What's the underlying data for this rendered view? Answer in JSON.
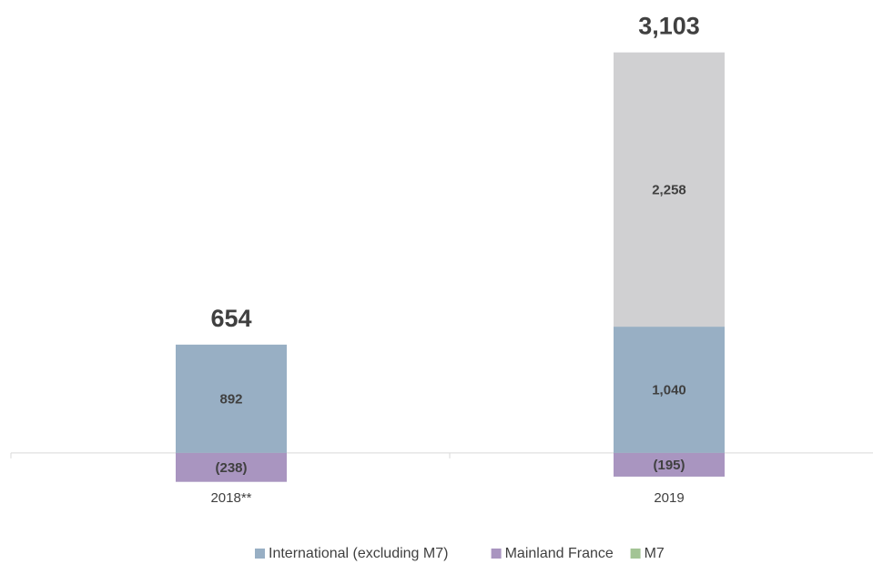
{
  "chart_data": {
    "type": "stacked_bar",
    "categories": [
      "2018**",
      "2019"
    ],
    "series": [
      {
        "name": "International (excluding M7)",
        "color": "#98afc4",
        "values": [
          892,
          1040
        ],
        "value_labels": [
          "892",
          "1,040"
        ]
      },
      {
        "name": "Mainland France",
        "color": "#a995c0",
        "values": [
          -238,
          -195
        ],
        "value_labels": [
          "(238)",
          "(195)"
        ]
      },
      {
        "name": "M7",
        "color": "#a3c495",
        "bar_color": "#d0d0d2",
        "values": [
          null,
          2258
        ],
        "value_labels": [
          null,
          "2,258"
        ]
      }
    ],
    "totals": {
      "values": [
        654,
        3103
      ],
      "value_labels": [
        "654",
        "3,103"
      ]
    },
    "ylim": [
      -450,
      3400
    ],
    "legend": "bottom"
  }
}
